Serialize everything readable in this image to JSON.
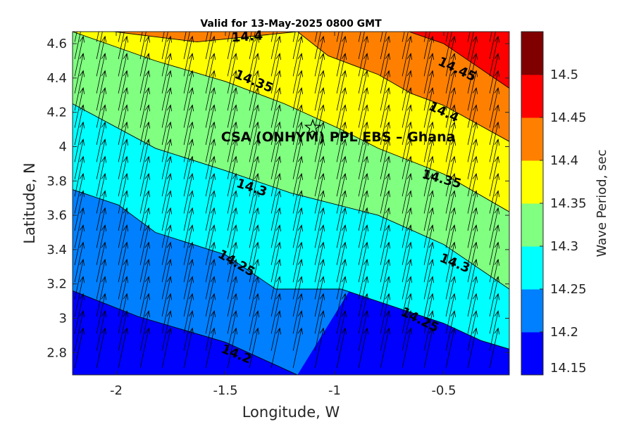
{
  "chart_data": {
    "type": "contour",
    "title": "Valid for 13-May-2025 0800 GMT",
    "xlabel": "Longitude, W",
    "ylabel": "Latitude, N",
    "colorbar_label": "Wave Period, sec",
    "xlim": [
      -2.2,
      -0.2
    ],
    "ylim": [
      2.67,
      4.67
    ],
    "x_ticks": [
      -2,
      -1.5,
      -1,
      -0.5
    ],
    "x_tick_labels": [
      "-2",
      "-1.5",
      "-1",
      "-0.5"
    ],
    "y_ticks": [
      2.8,
      3,
      3.2,
      3.4,
      3.6,
      3.8,
      4,
      4.2,
      4.4,
      4.6
    ],
    "y_tick_labels": [
      "2.8",
      "3",
      "3.2",
      "3.4",
      "3.6",
      "3.8",
      "4",
      "4.2",
      "4.4",
      "4.6"
    ],
    "levels": [
      14.15,
      14.2,
      14.25,
      14.3,
      14.35,
      14.4,
      14.45,
      14.5
    ],
    "level_labels": [
      "14.15",
      "14.2",
      "14.25",
      "14.3",
      "14.35",
      "14.4",
      "14.45",
      "14.5"
    ],
    "level_colors": [
      "#0000ff",
      "#0080ff",
      "#00ffff",
      "#80ff80",
      "#ffff00",
      "#ff8000",
      "#ff0000",
      "#800000"
    ],
    "contour_lines": [
      {
        "level": 14.2,
        "label": "14.2",
        "points": [
          [
            -2.2,
            3.16
          ],
          [
            -1.9,
            3.01
          ],
          [
            -1.5,
            2.86
          ],
          [
            -1.17,
            2.67
          ]
        ]
      },
      {
        "level": 14.25,
        "label": "14.25",
        "points": [
          [
            -2.2,
            3.75
          ],
          [
            -1.99,
            3.66
          ],
          [
            -1.82,
            3.5
          ],
          [
            -1.5,
            3.37
          ],
          [
            -1.27,
            3.17
          ],
          [
            -0.97,
            3.17
          ],
          [
            -0.5,
            2.97
          ],
          [
            -0.33,
            2.87
          ],
          [
            -0.2,
            2.82
          ]
        ]
      },
      {
        "level": 14.3,
        "label": "14.3",
        "points": [
          [
            -2.2,
            4.25
          ],
          [
            -1.82,
            3.99
          ],
          [
            -1.5,
            3.86
          ],
          [
            -1.2,
            3.73
          ],
          [
            -0.8,
            3.6
          ],
          [
            -0.5,
            3.43
          ],
          [
            -0.2,
            3.17
          ]
        ]
      },
      {
        "level": 14.35,
        "label": "14.35",
        "points": [
          [
            -2.2,
            4.67
          ],
          [
            -1.82,
            4.5
          ],
          [
            -1.5,
            4.38
          ],
          [
            -1.23,
            4.25
          ],
          [
            -0.97,
            4.1
          ],
          [
            -0.8,
            3.99
          ],
          [
            -0.5,
            3.84
          ],
          [
            -0.2,
            3.62
          ]
        ]
      },
      {
        "level": 14.4,
        "label": "14.4",
        "points": [
          [
            -2.01,
            4.67
          ],
          [
            -1.63,
            4.61
          ],
          [
            -1.17,
            4.67
          ],
          [
            -1.03,
            4.53
          ],
          [
            -0.8,
            4.42
          ],
          [
            -0.65,
            4.31
          ],
          [
            -0.5,
            4.24
          ],
          [
            -0.2,
            4.03
          ]
        ]
      },
      {
        "level": 14.45,
        "label": "14.45",
        "points": [
          [
            -0.66,
            4.67
          ],
          [
            -0.5,
            4.6
          ],
          [
            -0.2,
            4.34
          ]
        ]
      }
    ],
    "contour_label_positions": [
      {
        "text": "14.2",
        "x": -1.45,
        "y": 2.79,
        "angle": 22
      },
      {
        "text": "14.25",
        "x": -1.45,
        "y": 3.32,
        "angle": 30
      },
      {
        "text": "14.25",
        "x": -0.61,
        "y": 2.99,
        "angle": 26
      },
      {
        "text": "14.3",
        "x": -1.38,
        "y": 3.76,
        "angle": 18
      },
      {
        "text": "14.3",
        "x": -0.45,
        "y": 3.32,
        "angle": 22
      },
      {
        "text": "14.35",
        "x": -1.37,
        "y": 4.38,
        "angle": 22
      },
      {
        "text": "14.35",
        "x": -0.51,
        "y": 3.81,
        "angle": 15
      },
      {
        "text": "14.4",
        "x": -1.4,
        "y": 4.64,
        "angle": -4
      },
      {
        "text": "14.4",
        "x": -0.5,
        "y": 4.2,
        "angle": 25
      },
      {
        "text": "14.45",
        "x": -0.44,
        "y": 4.45,
        "angle": 25
      }
    ],
    "site_marker": {
      "x": -1.1,
      "y": 4.11,
      "symbol": "star"
    },
    "annotation": {
      "text": "CSA (ONHYM) PPL EBS  – Ghana",
      "x": -1.52,
      "y": 4.03
    },
    "vector_field": {
      "description": "wave direction arrows",
      "direction_deg_from_north": 12,
      "x_start": -2.19,
      "x_step": 0.1,
      "x_count": 20,
      "y_start": 2.71,
      "y_step": 0.1,
      "y_count": 20
    }
  }
}
